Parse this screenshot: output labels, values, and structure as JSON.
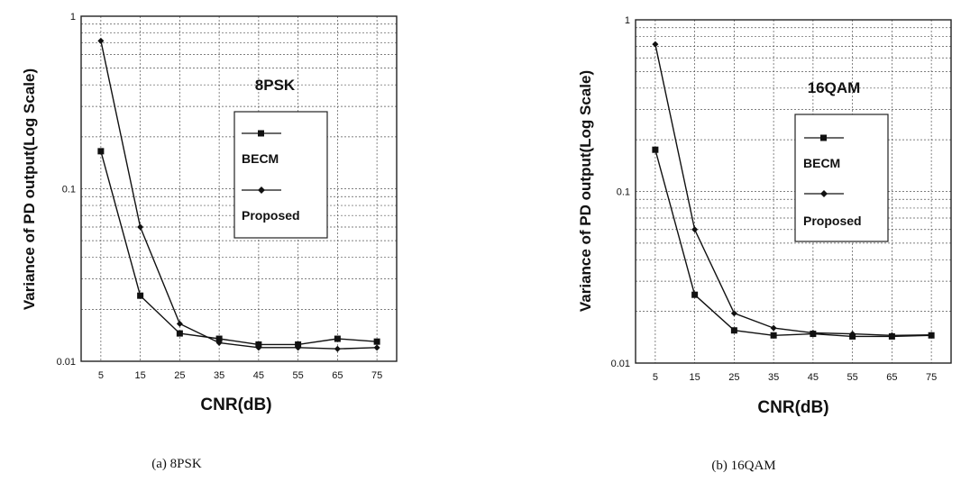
{
  "chart_data": [
    {
      "type": "line",
      "title": "8PSK",
      "caption": "(a) 8PSK",
      "xlabel": "CNR(dB)",
      "ylabel": "Variance of PD output(Log Scale)",
      "yscale": "log",
      "ylim": [
        0.01,
        1
      ],
      "y_ticks": [
        "1",
        "0.1",
        "0.01"
      ],
      "x": [
        5,
        15,
        25,
        35,
        45,
        55,
        65,
        75
      ],
      "x_ticks": [
        "5",
        "15",
        "25",
        "35",
        "45",
        "55",
        "65",
        "75"
      ],
      "legend_position": "center-right",
      "grid": true,
      "series": [
        {
          "name": "BECM",
          "marker": "square",
          "values": [
            0.165,
            0.024,
            0.0145,
            0.0135,
            0.0125,
            0.0125,
            0.0135,
            0.013
          ]
        },
        {
          "name": "Proposed",
          "marker": "diamond",
          "values": [
            0.72,
            0.06,
            0.0165,
            0.0128,
            0.012,
            0.012,
            0.0118,
            0.012
          ]
        }
      ]
    },
    {
      "type": "line",
      "title": "16QAM",
      "caption": "(b) 16QAM",
      "xlabel": "CNR(dB)",
      "ylabel": "Variance of PD output(Log Scale)",
      "yscale": "log",
      "ylim": [
        0.01,
        1
      ],
      "y_ticks": [
        "1",
        "0.1",
        "0.01"
      ],
      "x": [
        5,
        15,
        25,
        35,
        45,
        55,
        65,
        75
      ],
      "x_ticks": [
        "5",
        "15",
        "25",
        "35",
        "45",
        "55",
        "65",
        "75"
      ],
      "legend_position": "center-right",
      "grid": true,
      "series": [
        {
          "name": "BECM",
          "marker": "square",
          "values": [
            0.175,
            0.025,
            0.0155,
            0.0145,
            0.0148,
            0.0143,
            0.0143,
            0.0145
          ]
        },
        {
          "name": "Proposed",
          "marker": "diamond",
          "values": [
            0.72,
            0.06,
            0.0195,
            0.016,
            0.015,
            0.0148,
            0.0145,
            0.0146
          ]
        }
      ]
    }
  ]
}
